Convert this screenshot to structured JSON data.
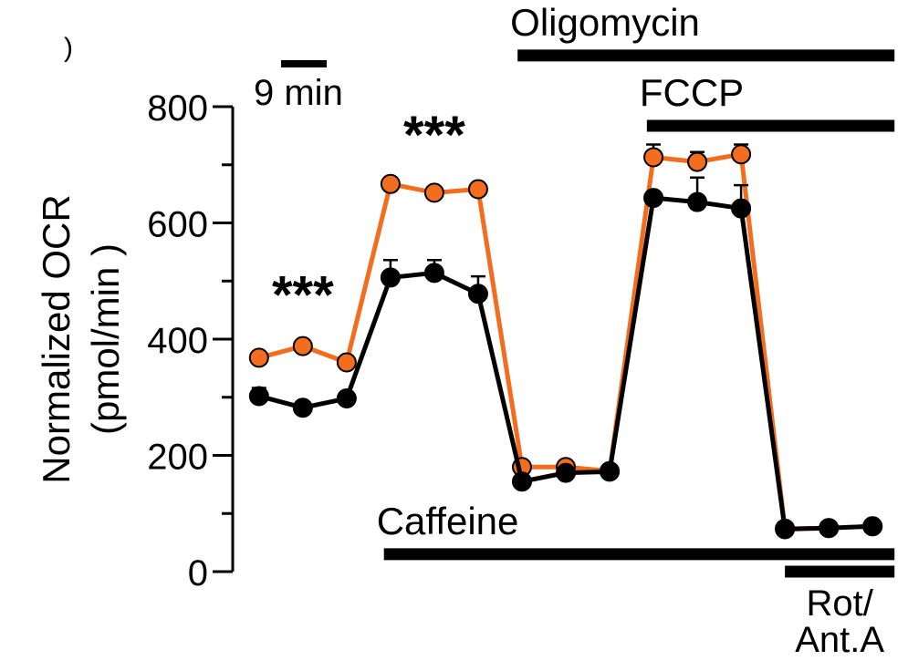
{
  "panel_mark": ")",
  "scale_bar": {
    "label": "9 min"
  },
  "chart_data": {
    "type": "line",
    "title": "",
    "xlabel": "",
    "ylabel": "Normalized OCR",
    "ylabel_unit": "(pmol/min )",
    "ylim": [
      0,
      800
    ],
    "yticks": [
      "0",
      "200",
      "400",
      "600",
      "800"
    ],
    "x": [
      1,
      2,
      3,
      4,
      5,
      6,
      7,
      8,
      9,
      10,
      11,
      12,
      13,
      14,
      15
    ],
    "xlim": [
      0.4,
      15.6
    ],
    "series": [
      {
        "color": "#f26d1e",
        "values": [
          368,
          388,
          360,
          667,
          652,
          658,
          180,
          180,
          173,
          713,
          705,
          718,
          74,
          75,
          78
        ],
        "errors": [
          0,
          0,
          0,
          0,
          0,
          0,
          0,
          0,
          0,
          22,
          17,
          17,
          0,
          0,
          0
        ]
      },
      {
        "color": "#000000",
        "values": [
          302,
          282,
          298,
          506,
          514,
          478,
          155,
          170,
          172,
          643,
          636,
          625,
          73,
          75,
          78
        ],
        "errors": [
          14,
          0,
          0,
          30,
          22,
          30,
          0,
          0,
          0,
          0,
          42,
          40,
          0,
          0,
          0
        ]
      }
    ],
    "significance": [
      {
        "text": "***",
        "x": 2,
        "y": 445
      },
      {
        "text": "***",
        "x": 5,
        "y": 720
      }
    ],
    "treatments": [
      {
        "label": "Caffeine",
        "x_start": 3.85,
        "x_end": 15.5,
        "y_bar": 30,
        "label_position": "above-left"
      },
      {
        "label": "Oligomycin",
        "x_start": 6.9,
        "x_end": 15.5,
        "y_bar": 888,
        "label_position": "above-left"
      },
      {
        "label": "FCCP",
        "x_start": 9.85,
        "x_end": 15.5,
        "y_bar": 767,
        "label_position": "above-left"
      },
      {
        "label": "Rot/\nAnt.A",
        "x_start": 13.0,
        "x_end": 15.5,
        "y_bar": 0,
        "label_position": "below"
      }
    ]
  }
}
